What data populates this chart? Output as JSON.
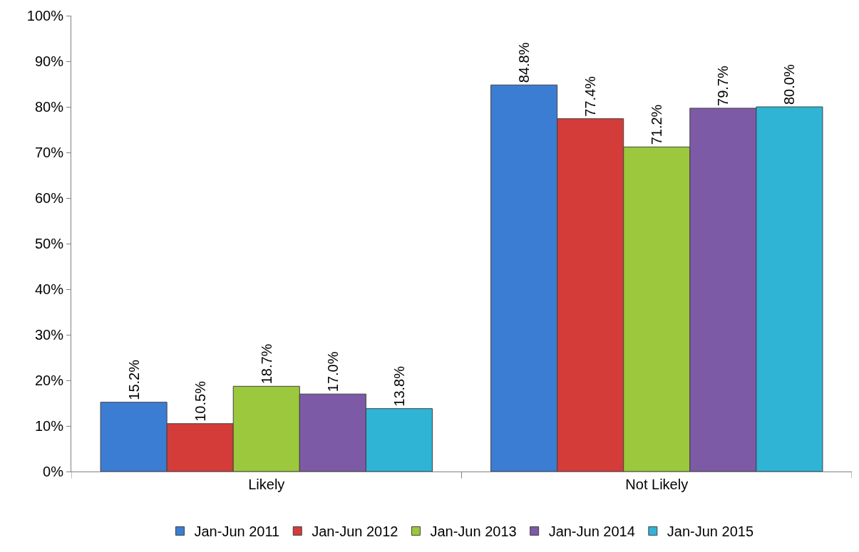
{
  "chart_data": {
    "type": "bar",
    "categories": [
      "Likely",
      "Not Likely"
    ],
    "series": [
      {
        "name": "Jan-Jun 2011",
        "color": "#3c7dd4",
        "values": [
          15.2,
          84.8
        ],
        "value_labels": [
          "15.2%",
          "84.8%"
        ]
      },
      {
        "name": "Jan-Jun 2012",
        "color": "#d43c3a",
        "values": [
          10.5,
          77.4
        ],
        "value_labels": [
          "10.5%",
          "77.4%"
        ]
      },
      {
        "name": "Jan-Jun 2013",
        "color": "#9bc83c",
        "values": [
          18.7,
          71.2
        ],
        "value_labels": [
          "18.7%",
          "71.2%"
        ]
      },
      {
        "name": "Jan-Jun 2014",
        "color": "#7d5aa6",
        "values": [
          17.0,
          79.7
        ],
        "value_labels": [
          "17.0%",
          "79.7%"
        ]
      },
      {
        "name": "Jan-Jun 2015",
        "color": "#2fb4d6",
        "values": [
          13.8,
          80.0
        ],
        "value_labels": [
          "13.8%",
          "80.0%"
        ]
      }
    ],
    "ylim": [
      0,
      100
    ],
    "yticks": [
      {
        "value": 0,
        "label": "0%"
      },
      {
        "value": 10,
        "label": "10%"
      },
      {
        "value": 20,
        "label": "20%"
      },
      {
        "value": 30,
        "label": "30%"
      },
      {
        "value": 40,
        "label": "40%"
      },
      {
        "value": 50,
        "label": "50%"
      },
      {
        "value": 60,
        "label": "60%"
      },
      {
        "value": 70,
        "label": "70%"
      },
      {
        "value": 80,
        "label": "80%"
      },
      {
        "value": 90,
        "label": "90%"
      },
      {
        "value": 100,
        "label": "100%"
      }
    ],
    "grid": false,
    "legend": "bottom"
  }
}
